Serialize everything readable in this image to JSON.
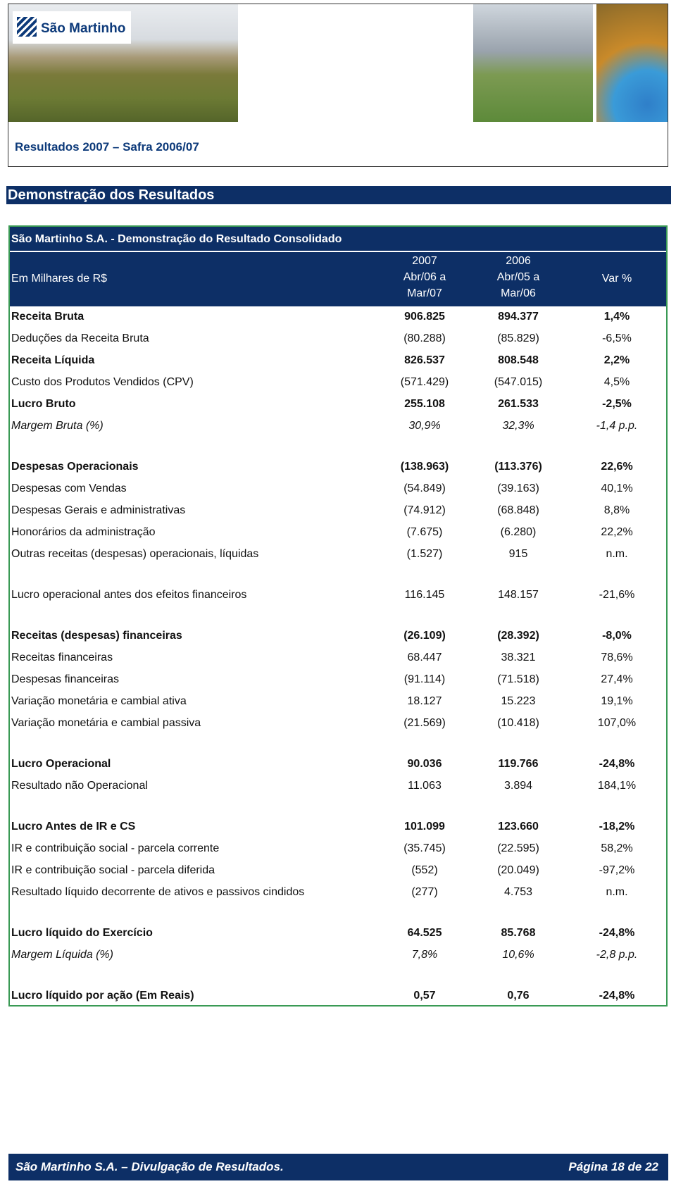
{
  "header": {
    "logo": "São Martinho",
    "subtitle": "Resultados 2007 – Safra 2006/07"
  },
  "section_title": "Demonstração dos Resultados",
  "table": {
    "title": "São Martinho S.A. - Demonstração do Resultado Consolidado",
    "unit": "Em Milhares de R$",
    "columns": [
      [
        "2007",
        "Abr/06 a",
        "Mar/07"
      ],
      [
        "2006",
        "Abr/05 a",
        "Mar/06"
      ],
      [
        "Var %"
      ]
    ],
    "sections": [
      [
        {
          "cells": [
            "Receita Bruta",
            "906.825",
            "894.377",
            "1,4%"
          ],
          "style": "bold"
        },
        {
          "cells": [
            "Deduções da Receita Bruta",
            "(80.288)",
            "(85.829)",
            "-6,5%"
          ]
        },
        {
          "cells": [
            "Receita Líquida",
            "826.537",
            "808.548",
            "2,2%"
          ],
          "style": "bold"
        },
        {
          "cells": [
            "Custo dos Produtos Vendidos (CPV)",
            "(571.429)",
            "(547.015)",
            "4,5%"
          ]
        },
        {
          "cells": [
            "Lucro Bruto",
            "255.108",
            "261.533",
            "-2,5%"
          ],
          "style": "bold"
        },
        {
          "cells": [
            "Margem Bruta (%)",
            "30,9%",
            "32,3%",
            "-1,4 p.p."
          ],
          "style": "italic"
        }
      ],
      [
        {
          "cells": [
            "Despesas Operacionais",
            "(138.963)",
            "(113.376)",
            "22,6%"
          ],
          "style": "bold"
        },
        {
          "cells": [
            "Despesas com Vendas",
            "(54.849)",
            "(39.163)",
            "40,1%"
          ]
        },
        {
          "cells": [
            "Despesas Gerais e administrativas",
            "(74.912)",
            "(68.848)",
            "8,8%"
          ]
        },
        {
          "cells": [
            "Honorários da administração",
            "(7.675)",
            "(6.280)",
            "22,2%"
          ]
        },
        {
          "cells": [
            "Outras receitas (despesas) operacionais, líquidas",
            "(1.527)",
            "915",
            "n.m."
          ]
        }
      ],
      [
        {
          "cells": [
            "Lucro operacional antes dos efeitos financeiros",
            "116.145",
            "148.157",
            "-21,6%"
          ]
        }
      ],
      [
        {
          "cells": [
            "Receitas (despesas) financeiras",
            "(26.109)",
            "(28.392)",
            "-8,0%"
          ],
          "style": "bold"
        },
        {
          "cells": [
            "Receitas financeiras",
            "68.447",
            "38.321",
            "78,6%"
          ]
        },
        {
          "cells": [
            "Despesas financeiras",
            "(91.114)",
            "(71.518)",
            "27,4%"
          ]
        },
        {
          "cells": [
            "Variação monetária e cambial ativa",
            "18.127",
            "15.223",
            "19,1%"
          ]
        },
        {
          "cells": [
            "Variação monetária e cambial passiva",
            "(21.569)",
            "(10.418)",
            "107,0%"
          ]
        }
      ],
      [
        {
          "cells": [
            "Lucro Operacional",
            "90.036",
            "119.766",
            "-24,8%"
          ],
          "style": "bold"
        },
        {
          "cells": [
            "Resultado não Operacional",
            "11.063",
            "3.894",
            "184,1%"
          ]
        }
      ],
      [
        {
          "cells": [
            "Lucro Antes de IR e CS",
            "101.099",
            "123.660",
            "-18,2%"
          ],
          "style": "bold"
        },
        {
          "cells": [
            "IR e contribuição social - parcela corrente",
            "(35.745)",
            "(22.595)",
            "58,2%"
          ]
        },
        {
          "cells": [
            "IR e contribuição social - parcela diferida",
            "(552)",
            "(20.049)",
            "-97,2%"
          ]
        },
        {
          "cells": [
            "Resultado líquido decorrente de ativos e passivos cindidos",
            "(277)",
            "4.753",
            "n.m."
          ]
        }
      ],
      [
        {
          "cells": [
            "Lucro líquido do Exercício",
            "64.525",
            "85.768",
            "-24,8%"
          ],
          "style": "bold"
        },
        {
          "cells": [
            "Margem Líquida (%)",
            "7,8%",
            "10,6%",
            "-2,8 p.p."
          ],
          "style": "italic"
        }
      ],
      [
        {
          "cells": [
            "Lucro líquido por ação (Em Reais)",
            "0,57",
            "0,76",
            "-24,8%"
          ],
          "style": "bold"
        }
      ]
    ]
  },
  "footer": {
    "left": "São Martinho S.A. – Divulgação de Resultados.",
    "right": "Página 18 de 22"
  }
}
